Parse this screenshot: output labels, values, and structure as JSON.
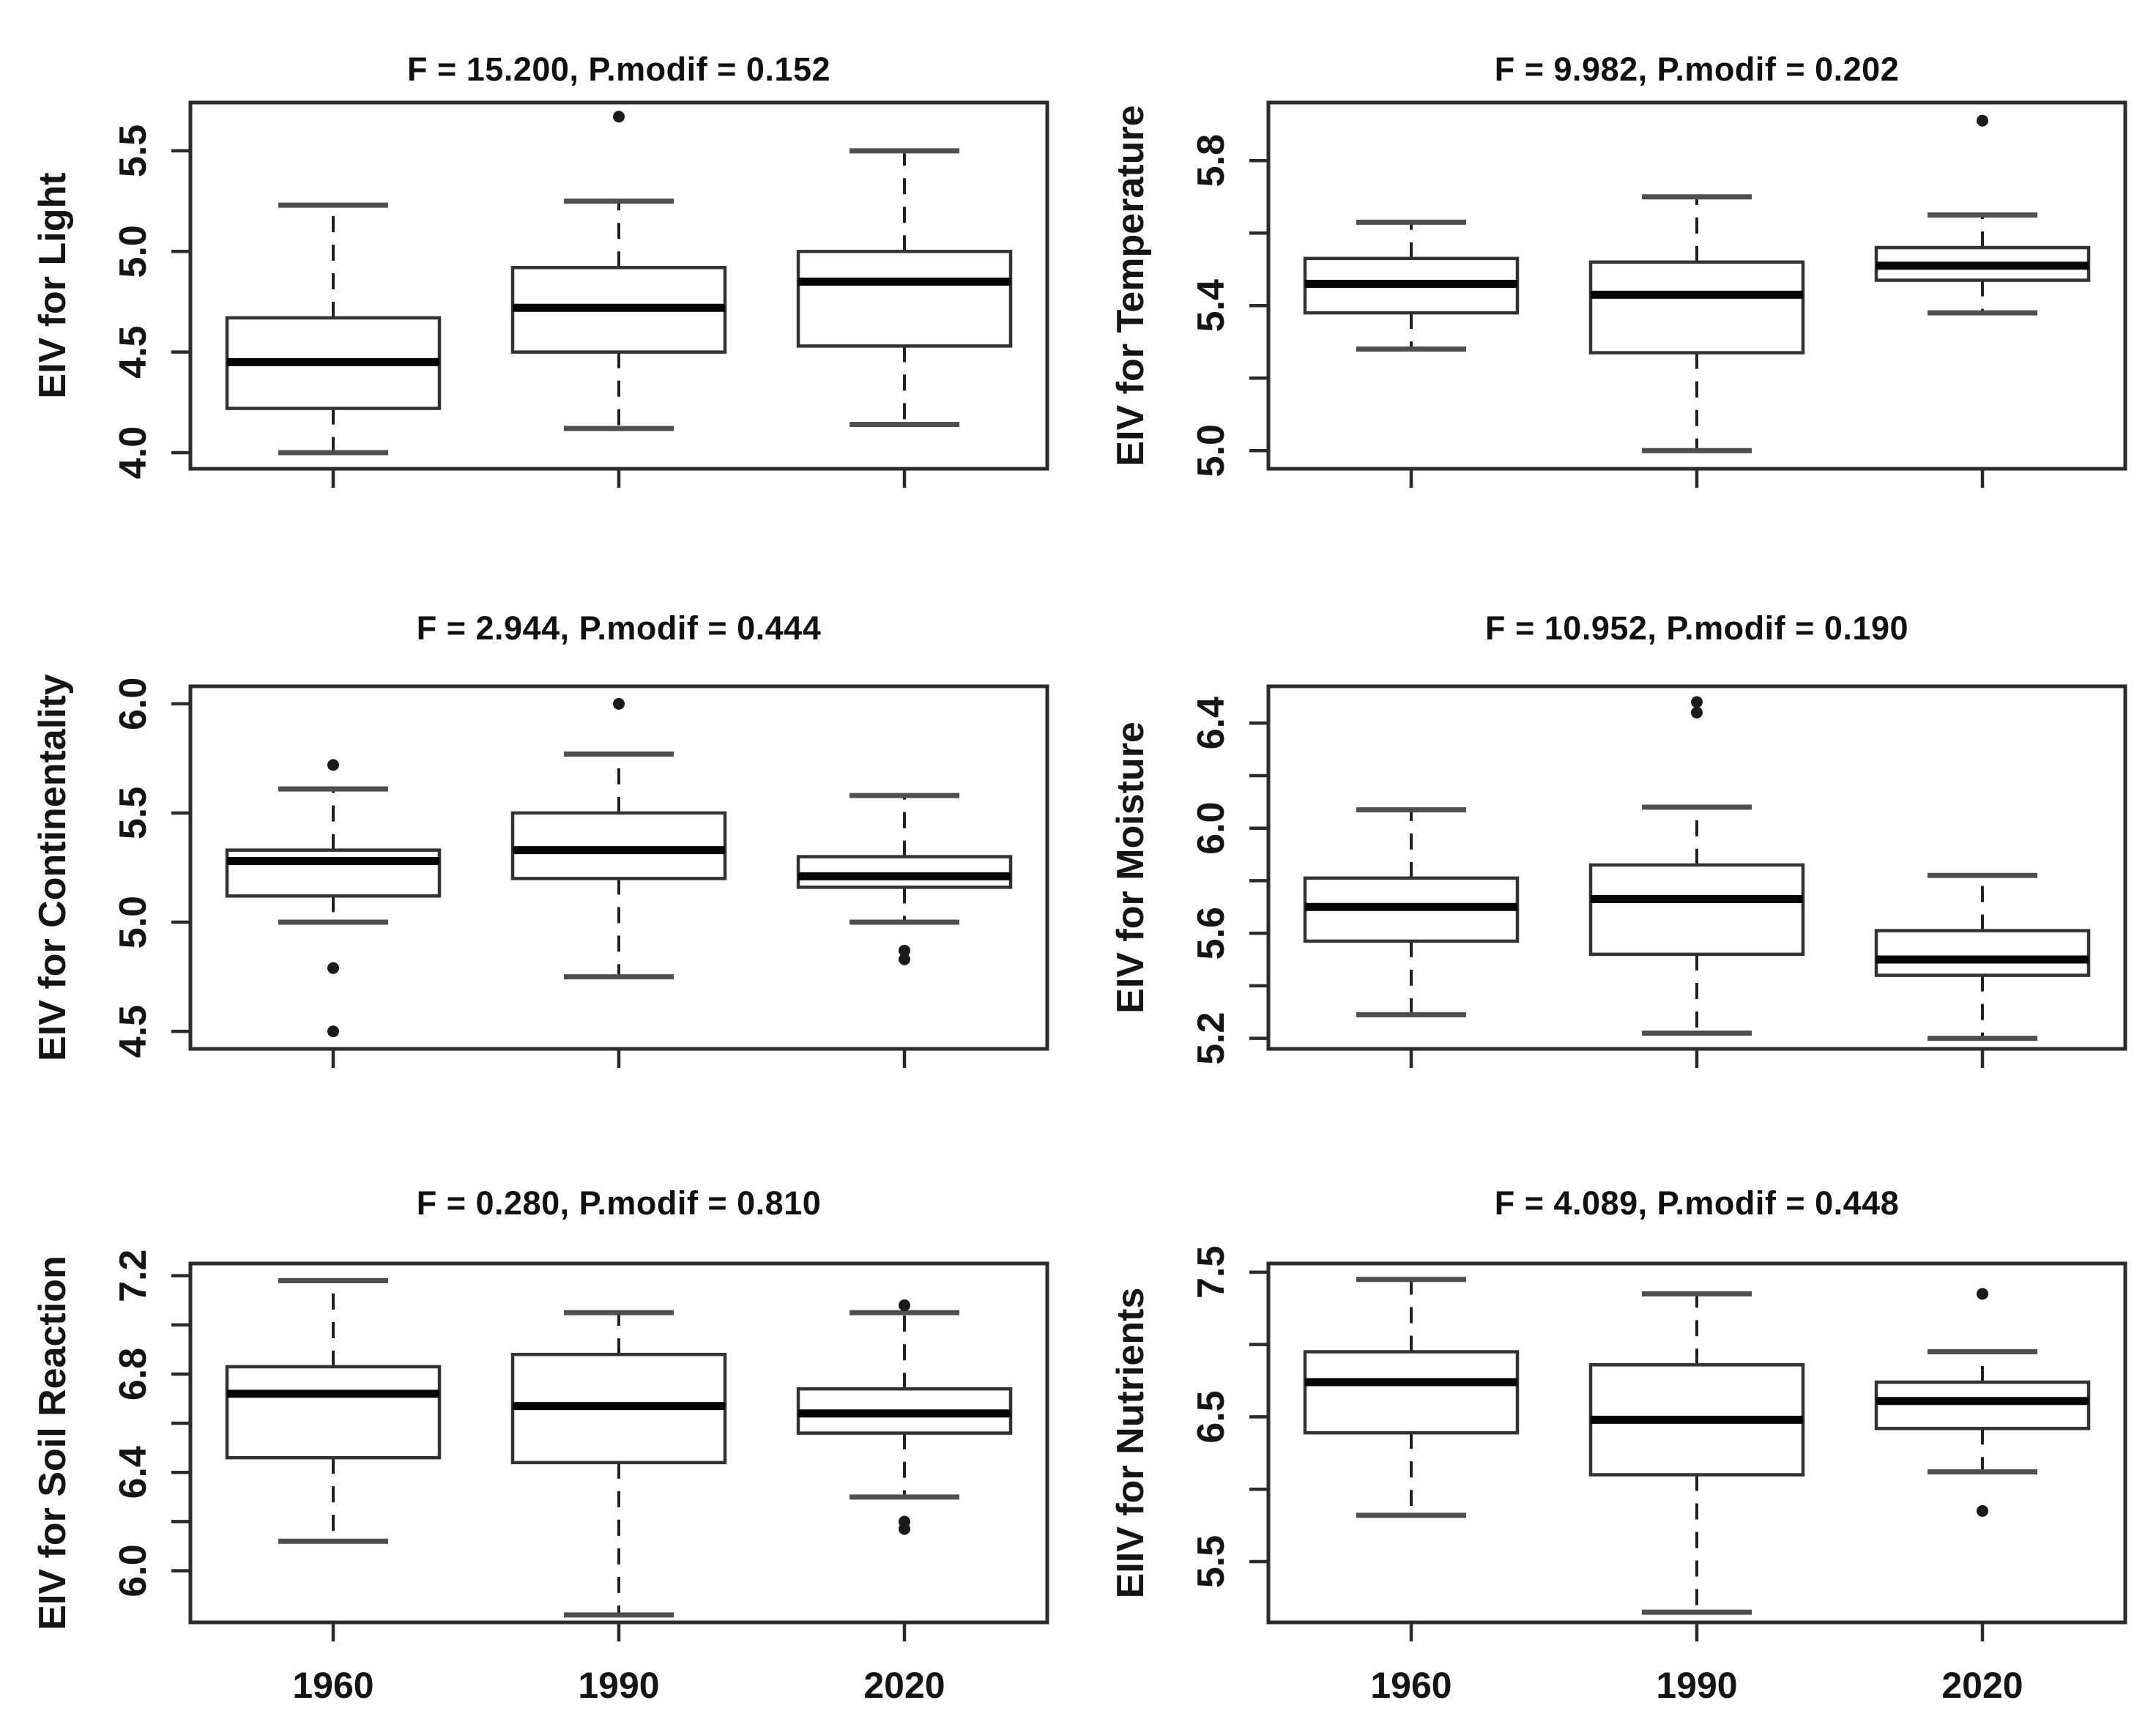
{
  "colors": {
    "ink": "#1c1c1c",
    "frame": "#2b2b2b",
    "box_stroke": "#333333",
    "median": "#050505",
    "whisker": "#222222",
    "cap": "#4f4f4f",
    "outlier": "#1a1a1a",
    "background": "#ffffff",
    "text": "#151515"
  },
  "categories": [
    "1960",
    "1990",
    "2020"
  ],
  "chart_data": [
    {
      "type": "boxplot",
      "title": "F = 15.200, P.modif = 0.152",
      "ylabel": "EIV for Light",
      "ylim": [
        3.92,
        5.74
      ],
      "yticks": [
        {
          "v": 4.0,
          "label": "4.0"
        },
        {
          "v": 4.5,
          "label": "4.5"
        },
        {
          "v": 5.0,
          "label": "5.0"
        },
        {
          "v": 5.5,
          "label": "5.5"
        }
      ],
      "yticks_minor": [],
      "categories": [
        "1960",
        "1990",
        "2020"
      ],
      "show_x_labels": false,
      "grid": false,
      "boxes": [
        {
          "category": "1960",
          "whisker_low": 4.0,
          "q1": 4.22,
          "median": 4.45,
          "q3": 4.67,
          "whisker_high": 5.23,
          "outliers": []
        },
        {
          "category": "1990",
          "whisker_low": 4.12,
          "q1": 4.5,
          "median": 4.72,
          "q3": 4.92,
          "whisker_high": 5.25,
          "outliers": [
            5.67
          ]
        },
        {
          "category": "2020",
          "whisker_low": 4.14,
          "q1": 4.53,
          "median": 4.85,
          "q3": 5.0,
          "whisker_high": 5.5,
          "outliers": []
        }
      ]
    },
    {
      "type": "boxplot",
      "title": "F = 9.982, P.modif = 0.202",
      "ylabel": "EIV for Temperature",
      "ylim": [
        4.95,
        5.96
      ],
      "yticks": [
        {
          "v": 5.0,
          "label": "5.0"
        },
        {
          "v": 5.4,
          "label": "5.4"
        },
        {
          "v": 5.8,
          "label": "5.8"
        }
      ],
      "yticks_minor": [
        5.2,
        5.6
      ],
      "categories": [
        "1960",
        "1990",
        "2020"
      ],
      "show_x_labels": false,
      "grid": false,
      "boxes": [
        {
          "category": "1960",
          "whisker_low": 5.28,
          "q1": 5.38,
          "median": 5.46,
          "q3": 5.53,
          "whisker_high": 5.63,
          "outliers": []
        },
        {
          "category": "1990",
          "whisker_low": 5.0,
          "q1": 5.27,
          "median": 5.43,
          "q3": 5.52,
          "whisker_high": 5.7,
          "outliers": []
        },
        {
          "category": "2020",
          "whisker_low": 5.38,
          "q1": 5.47,
          "median": 5.51,
          "q3": 5.56,
          "whisker_high": 5.65,
          "outliers": [
            5.91
          ]
        }
      ]
    },
    {
      "type": "boxplot",
      "title": "F = 2.944, P.modif = 0.444",
      "ylabel": "EIV for Continentality",
      "ylim": [
        4.42,
        6.08
      ],
      "yticks": [
        {
          "v": 4.5,
          "label": "4.5"
        },
        {
          "v": 5.0,
          "label": "5.0"
        },
        {
          "v": 5.5,
          "label": "5.5"
        },
        {
          "v": 6.0,
          "label": "6.0"
        }
      ],
      "yticks_minor": [],
      "categories": [
        "1960",
        "1990",
        "2020"
      ],
      "show_x_labels": false,
      "grid": false,
      "boxes": [
        {
          "category": "1960",
          "whisker_low": 5.0,
          "q1": 5.12,
          "median": 5.28,
          "q3": 5.33,
          "whisker_high": 5.61,
          "outliers": [
            4.5,
            4.79,
            5.72
          ]
        },
        {
          "category": "1990",
          "whisker_low": 4.75,
          "q1": 5.2,
          "median": 5.33,
          "q3": 5.5,
          "whisker_high": 5.77,
          "outliers": [
            6.0
          ]
        },
        {
          "category": "2020",
          "whisker_low": 5.0,
          "q1": 5.16,
          "median": 5.21,
          "q3": 5.3,
          "whisker_high": 5.58,
          "outliers": [
            4.83,
            4.87
          ]
        }
      ]
    },
    {
      "type": "boxplot",
      "title": "F = 10.952, P.modif = 0.190",
      "ylabel": "EIV for Moisture",
      "ylim": [
        5.16,
        6.54
      ],
      "yticks": [
        {
          "v": 5.2,
          "label": "5.2"
        },
        {
          "v": 5.6,
          "label": "5.6"
        },
        {
          "v": 6.0,
          "label": "6.0"
        },
        {
          "v": 6.4,
          "label": "6.4"
        }
      ],
      "yticks_minor": [
        5.4,
        5.8,
        6.2
      ],
      "categories": [
        "1960",
        "1990",
        "2020"
      ],
      "show_x_labels": false,
      "grid": false,
      "boxes": [
        {
          "category": "1960",
          "whisker_low": 5.29,
          "q1": 5.57,
          "median": 5.7,
          "q3": 5.81,
          "whisker_high": 6.07,
          "outliers": []
        },
        {
          "category": "1990",
          "whisker_low": 5.22,
          "q1": 5.52,
          "median": 5.73,
          "q3": 5.86,
          "whisker_high": 6.08,
          "outliers": [
            6.44,
            6.48
          ]
        },
        {
          "category": "2020",
          "whisker_low": 5.2,
          "q1": 5.44,
          "median": 5.5,
          "q3": 5.61,
          "whisker_high": 5.82,
          "outliers": []
        }
      ]
    },
    {
      "type": "boxplot",
      "title": "F = 0.280, P.modif = 0.810",
      "ylabel": "EIV for Soil Reaction",
      "ylim": [
        5.79,
        7.25
      ],
      "yticks": [
        {
          "v": 6.0,
          "label": "6.0"
        },
        {
          "v": 6.4,
          "label": "6.4"
        },
        {
          "v": 6.8,
          "label": "6.8"
        },
        {
          "v": 7.2,
          "label": "7.2"
        }
      ],
      "yticks_minor": [
        6.2,
        6.6,
        7.0
      ],
      "categories": [
        "1960",
        "1990",
        "2020"
      ],
      "show_x_labels": true,
      "grid": false,
      "boxes": [
        {
          "category": "1960",
          "whisker_low": 6.12,
          "q1": 6.46,
          "median": 6.72,
          "q3": 6.83,
          "whisker_high": 7.18,
          "outliers": []
        },
        {
          "category": "1990",
          "whisker_low": 5.82,
          "q1": 6.44,
          "median": 6.67,
          "q3": 6.88,
          "whisker_high": 7.05,
          "outliers": []
        },
        {
          "category": "2020",
          "whisker_low": 6.3,
          "q1": 6.56,
          "median": 6.64,
          "q3": 6.74,
          "whisker_high": 7.05,
          "outliers": [
            6.17,
            6.2,
            7.08
          ]
        }
      ]
    },
    {
      "type": "boxplot",
      "title": "F = 4.089, P.modif = 0.448",
      "ylabel": "EIIV for Nutrients",
      "ylim": [
        5.08,
        7.56
      ],
      "yticks": [
        {
          "v": 5.5,
          "label": "5.5"
        },
        {
          "v": 6.5,
          "label": "6.5"
        },
        {
          "v": 7.5,
          "label": "7.5"
        }
      ],
      "yticks_minor": [
        6.0,
        7.0
      ],
      "categories": [
        "1960",
        "1990",
        "2020"
      ],
      "show_x_labels": true,
      "grid": false,
      "boxes": [
        {
          "category": "1960",
          "whisker_low": 5.82,
          "q1": 6.39,
          "median": 6.74,
          "q3": 6.95,
          "whisker_high": 7.45,
          "outliers": []
        },
        {
          "category": "1990",
          "whisker_low": 5.15,
          "q1": 6.1,
          "median": 6.48,
          "q3": 6.86,
          "whisker_high": 7.35,
          "outliers": []
        },
        {
          "category": "2020",
          "whisker_low": 6.12,
          "q1": 6.42,
          "median": 6.61,
          "q3": 6.74,
          "whisker_high": 6.95,
          "outliers": [
            5.85,
            7.35
          ]
        }
      ]
    }
  ]
}
